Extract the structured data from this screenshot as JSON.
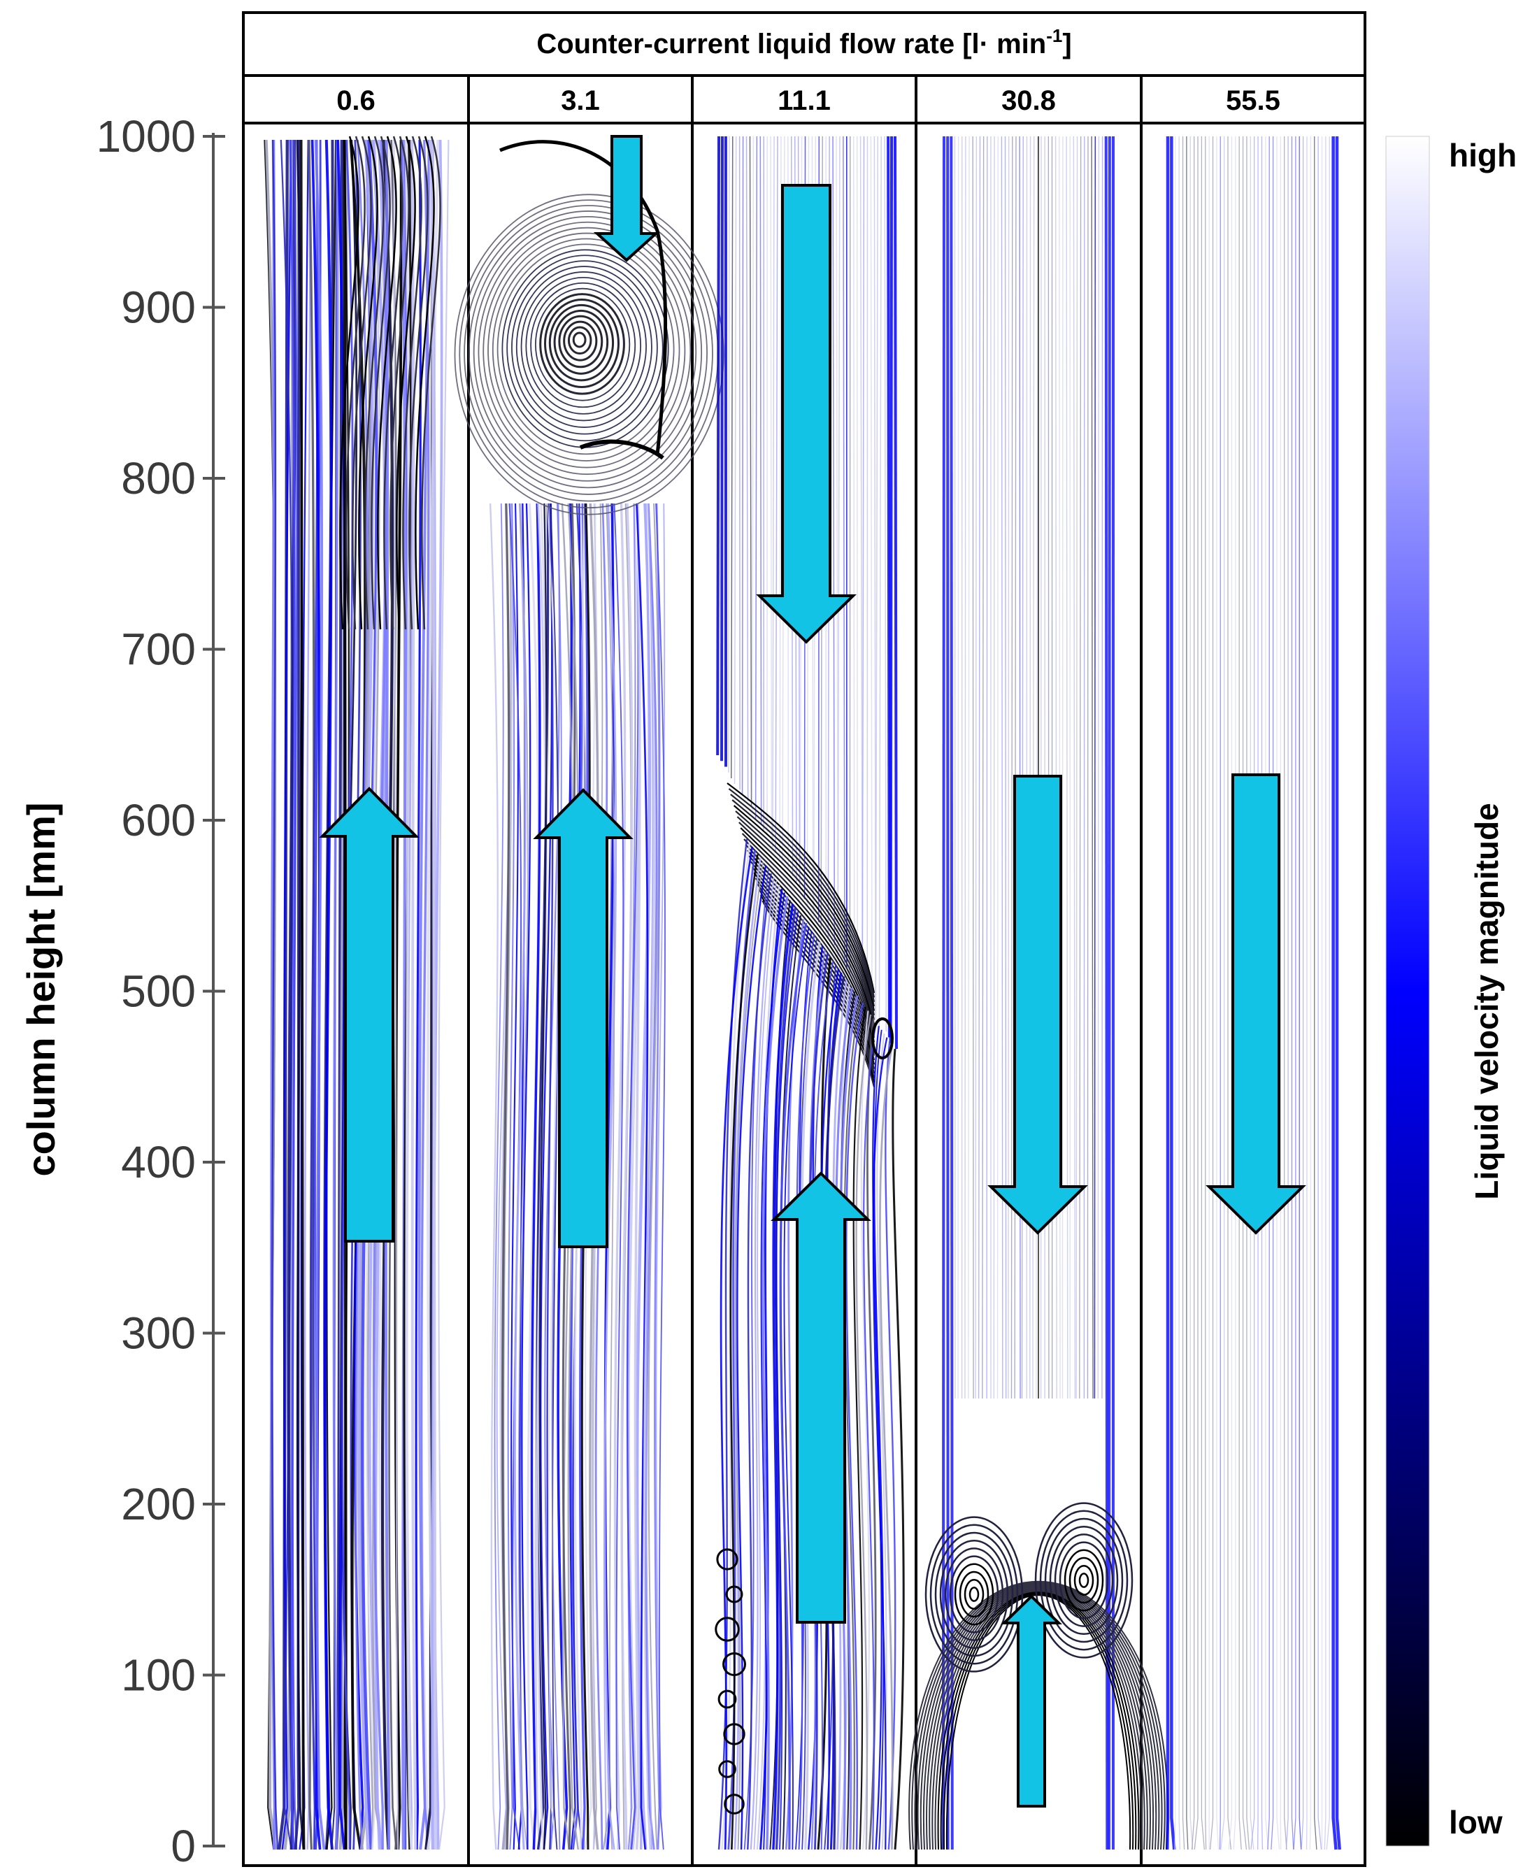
{
  "header": {
    "title_main": "Counter-current liquid flow rate [l· min",
    "title_sup": "-1",
    "title_end": "]"
  },
  "y_axis": {
    "label": "column height [mm]",
    "ticks": [
      "1000",
      "900",
      "800",
      "700",
      "600",
      "500",
      "400",
      "300",
      "200",
      "100",
      "0"
    ]
  },
  "panels": [
    {
      "flow_rate": "0.6"
    },
    {
      "flow_rate": "3.1"
    },
    {
      "flow_rate": "11.1"
    },
    {
      "flow_rate": "30.8"
    },
    {
      "flow_rate": "55.5"
    }
  ],
  "colorbar": {
    "label": "Liquid velocity magnitude",
    "high": "high",
    "low": "low",
    "color_high": "#ffffff",
    "color_mid": "#0000ff",
    "color_low": "#000000"
  },
  "arrow_color": "#12c3e6"
}
